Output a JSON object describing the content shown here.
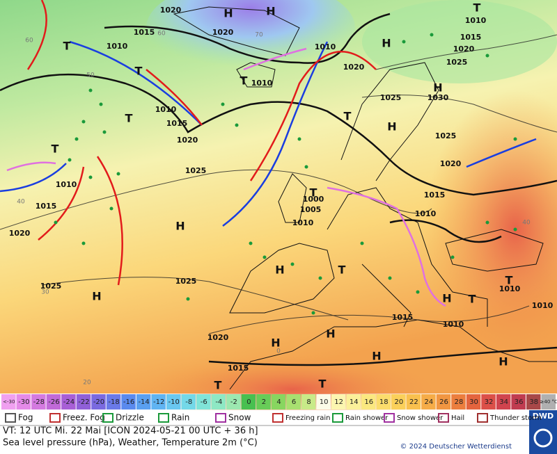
{
  "pressure_labels": [
    "1020",
    "1015",
    "1010",
    "1020",
    "1010",
    "1020",
    "1010",
    "1010",
    "1015",
    "1020",
    "1025",
    "1010",
    "1015",
    "1020",
    "1025",
    "1025",
    "1020",
    "1015",
    "1000",
    "1005",
    "1010",
    "1010",
    "1015",
    "1020",
    "1025",
    "1025",
    "1030",
    "1025",
    "1020",
    "1015",
    "1010",
    "1015",
    "1010",
    "1010",
    "1010"
  ],
  "centers": [
    "H",
    "H",
    "T",
    "T",
    "H",
    "T",
    "H",
    "T",
    "H",
    "T",
    "T",
    "H",
    "H",
    "T",
    "H",
    "T",
    "H",
    "H",
    "H",
    "H",
    "T",
    "T",
    "T",
    "T",
    "H",
    "T"
  ],
  "grid_labels": [
    "60",
    "50",
    "40",
    "30",
    "20",
    "70",
    "60",
    "40",
    "0"
  ],
  "scale": [
    "<-30",
    "-30",
    "-28",
    "-26",
    "-24",
    "-22",
    "-20",
    "-18",
    "-16",
    "-14",
    "-12",
    "-10",
    "-8",
    "-6",
    "-4",
    "-2",
    "0",
    "2",
    "4",
    "6",
    "8",
    "10",
    "12",
    "14",
    "16",
    "18",
    "20",
    "22",
    "24",
    "26",
    "28",
    "30",
    "32",
    "34",
    "36",
    "38",
    "≥40 °C"
  ],
  "legend": [
    "Fog",
    "Freez. Fog",
    "Drizzle",
    "Rain",
    "Snow",
    "Freezing rain",
    "Rain shower",
    "Snow shower",
    "Hail",
    "Thunder storm"
  ],
  "footer": {
    "valid_time": "VT: 12 UTC Mi.  22 Mai [ICON 2024-05-21  00 UTC + 36 h]",
    "description": "Sea level pressure (hPa), Weather, Temperature 2m (°C)",
    "copyright": "© 2024 Deutscher Wetterdienst",
    "logo": "DWD"
  }
}
